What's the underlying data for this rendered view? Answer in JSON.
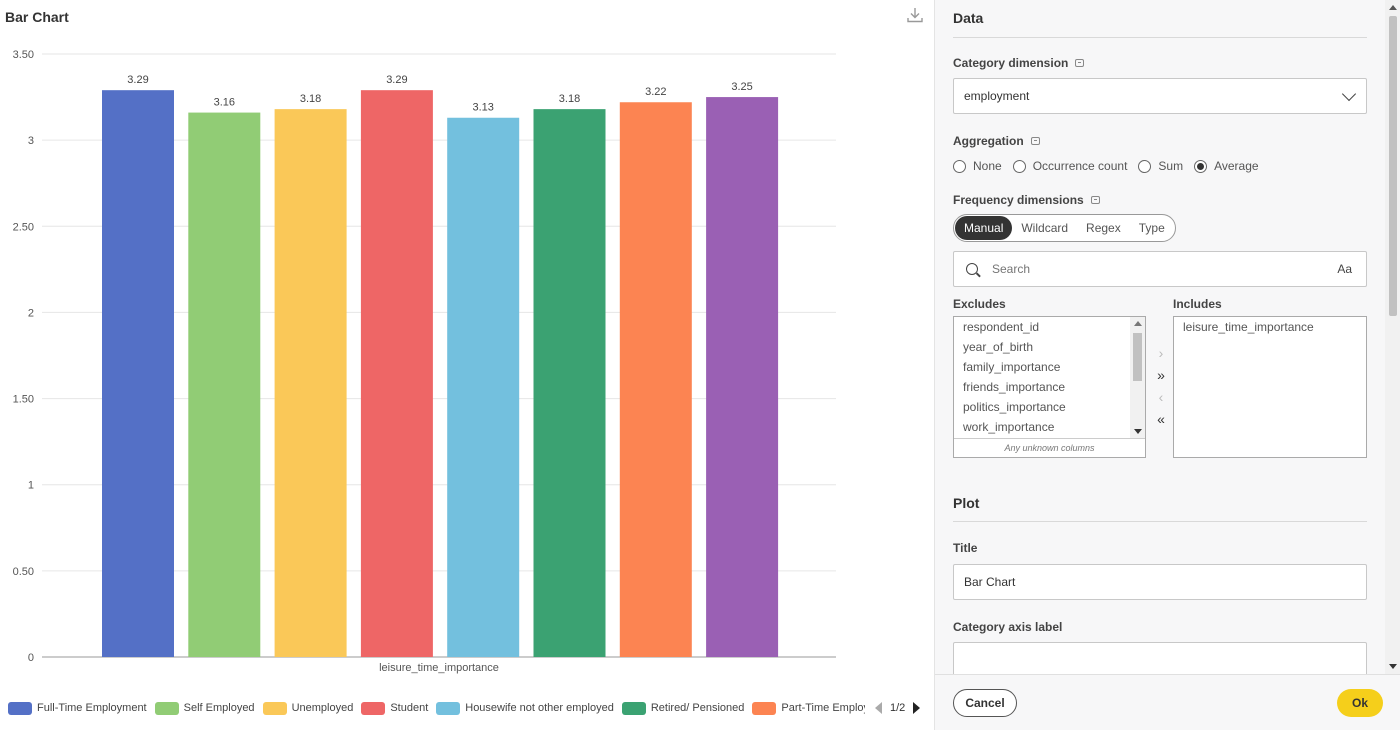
{
  "chart_pane": {
    "title": "Bar Chart",
    "download_icon": "download-icon"
  },
  "chart_data": {
    "type": "bar",
    "title": "Bar Chart",
    "xlabel": "leisure_time_importance",
    "ylabel": "",
    "ylim": [
      0,
      3.5
    ],
    "yticks": [
      "0",
      "0.50",
      "1",
      "1.50",
      "2",
      "2.50",
      "3",
      "3.50"
    ],
    "grid": true,
    "legend_position": "bottom",
    "categories": [
      "leisure_time_importance"
    ],
    "series": [
      {
        "name": "Full-Time Employment",
        "value": 3.29,
        "label": "3.29",
        "color": "#5470c6"
      },
      {
        "name": "Self Employed",
        "value": 3.16,
        "label": "3.16",
        "color": "#91cc75"
      },
      {
        "name": "Unemployed",
        "value": 3.18,
        "label": "3.18",
        "color": "#fac858"
      },
      {
        "name": "Student",
        "value": 3.29,
        "label": "3.29",
        "color": "#ee6666"
      },
      {
        "name": "Housewife not other employed",
        "value": 3.13,
        "label": "3.13",
        "color": "#73c0de"
      },
      {
        "name": "Retired/ Pensioned",
        "value": 3.18,
        "label": "3.18",
        "color": "#3ba272"
      },
      {
        "name": "Part-Time Employment",
        "value": 3.22,
        "label": "3.22",
        "color": "#fc8452"
      },
      {
        "name": "",
        "value": 3.25,
        "label": "3.25",
        "color": "#9a60b4"
      }
    ]
  },
  "legend": {
    "page_indicator": "1/2",
    "visible_labels": [
      "Full-Time Employment",
      "Self Employed",
      "Unemployed",
      "Student",
      "Housewife not other employed",
      "Retired/ Pensioned",
      "Part-Time Employr"
    ]
  },
  "config": {
    "data_section_title": "Data",
    "category_dimension": {
      "label": "Category dimension",
      "value": "employment"
    },
    "aggregation": {
      "label": "Aggregation",
      "options": [
        "None",
        "Occurrence count",
        "Sum",
        "Average"
      ],
      "selected": "Average"
    },
    "frequency_dimensions": {
      "label": "Frequency dimensions",
      "modes": [
        "Manual",
        "Wildcard",
        "Regex",
        "Type"
      ],
      "active_mode": "Manual",
      "search_placeholder": "Search",
      "case_toggle": "Aa",
      "excludes_label": "Excludes",
      "includes_label": "Includes",
      "excludes": [
        "respondent_id",
        "year_of_birth",
        "family_importance",
        "friends_importance",
        "politics_importance",
        "work_importance"
      ],
      "excludes_footer": "Any unknown columns",
      "includes": [
        "leisure_time_importance"
      ],
      "move_buttons": [
        "›",
        "»",
        "‹",
        "«"
      ]
    },
    "plot_section_title": "Plot",
    "title_field": {
      "label": "Title",
      "value": "Bar Chart"
    },
    "category_axis_label_field": {
      "label": "Category axis label",
      "value": ""
    }
  },
  "footer": {
    "cancel_label": "Cancel",
    "ok_label": "Ok",
    "ok_color": "#f5cf1b"
  }
}
